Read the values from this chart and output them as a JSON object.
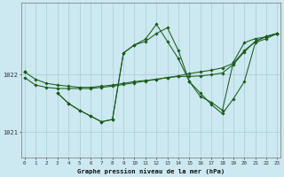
{
  "xlabel": "Graphe pression niveau de la mer (hPa)",
  "x_ticks": [
    0,
    1,
    2,
    3,
    4,
    5,
    6,
    7,
    8,
    9,
    10,
    11,
    12,
    13,
    14,
    15,
    16,
    17,
    18,
    19,
    20,
    21,
    22,
    23
  ],
  "ylim": [
    1020.55,
    1023.25
  ],
  "yticks": [
    1021,
    1022
  ],
  "bg_color": "#cce8f0",
  "grid_color": "#aaccd6",
  "line_color": "#1a5c1a",
  "series": [
    [
      1022.05,
      1021.92,
      1021.85,
      1021.82,
      1021.8,
      1021.78,
      1021.78,
      1021.8,
      1021.82,
      1021.85,
      1021.88,
      1021.9,
      1021.92,
      1021.95,
      1021.98,
      1022.02,
      1022.05,
      1022.08,
      1022.12,
      1022.2,
      1022.42,
      1022.58,
      1022.67,
      1022.72
    ],
    [
      1021.95,
      1021.82,
      1021.78,
      1021.76,
      1021.76,
      1021.76,
      1021.76,
      1021.78,
      1021.8,
      1021.83,
      1021.86,
      1021.89,
      1021.92,
      1021.95,
      1021.97,
      1021.97,
      1021.98,
      1022.0,
      1022.03,
      1022.18,
      1022.4,
      1022.58,
      1022.67,
      1022.72
    ],
    [
      1022.05,
      null,
      null,
      1021.68,
      1021.5,
      1021.38,
      1021.28,
      1021.18,
      1021.22,
      1022.38,
      1022.52,
      1022.58,
      1022.72,
      1022.82,
      1022.42,
      1021.88,
      1021.62,
      1021.52,
      1021.38,
      1022.22,
      1022.56,
      1022.63,
      1022.66,
      1022.72
    ],
    [
      1022.05,
      null,
      null,
      1021.68,
      1021.5,
      1021.38,
      1021.28,
      1021.18,
      1021.22,
      1022.38,
      1022.52,
      1022.62,
      1022.88,
      1022.58,
      1022.28,
      1021.88,
      1021.68,
      1021.48,
      1021.32,
      1021.58,
      1021.88,
      1022.56,
      1022.63,
      1022.72
    ]
  ],
  "figsize": [
    3.2,
    2.0
  ],
  "dpi": 100
}
